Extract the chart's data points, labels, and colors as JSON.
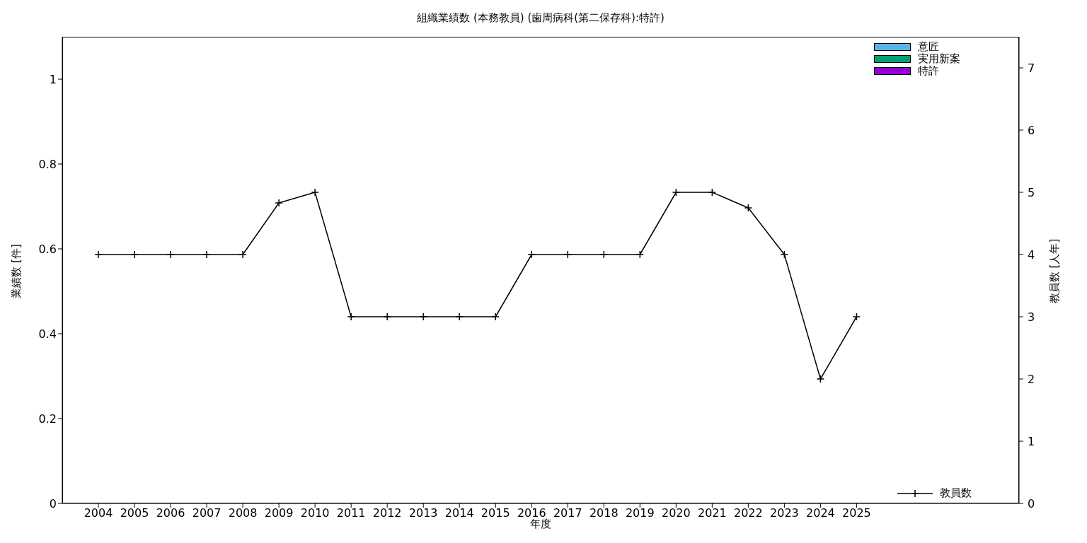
{
  "chart_data": {
    "type": "bar",
    "title": "組織業績数 (本務教員) (歯周病科(第二保存科):特許)",
    "xlabel": "年度",
    "ylabel": "業績数 [件]",
    "y2label": "教員数 [人年]",
    "x": [
      2004,
      2005,
      2006,
      2007,
      2008,
      2009,
      2010,
      2011,
      2012,
      2013,
      2014,
      2015,
      2016,
      2017,
      2018,
      2019,
      2020,
      2021,
      2022,
      2023,
      2024,
      2025
    ],
    "xlim": [
      2003,
      2029.5
    ],
    "xticks": [
      2004,
      2005,
      2006,
      2007,
      2008,
      2009,
      2010,
      2011,
      2012,
      2013,
      2014,
      2015,
      2016,
      2017,
      2018,
      2019,
      2020,
      2021,
      2022,
      2023,
      2024,
      2025
    ],
    "ylim": [
      0,
      1.1
    ],
    "yticks": [
      0,
      0.2,
      0.4,
      0.6,
      0.8,
      1
    ],
    "y2lim": [
      0,
      7.5
    ],
    "y2ticks": [
      0,
      1,
      2,
      3,
      4,
      5,
      6,
      7
    ],
    "legend": "right",
    "series": [
      {
        "name": "特許",
        "color": "#9400d3",
        "values": [
          0,
          0,
          0,
          0,
          0,
          0,
          0,
          0,
          0,
          0,
          0,
          0,
          0,
          0,
          0,
          0,
          0,
          0,
          0,
          0,
          0,
          0
        ]
      },
      {
        "name": "実用新案",
        "color": "#009e73",
        "values": [
          0,
          0,
          0,
          0,
          0,
          0,
          0,
          0,
          0,
          0,
          0,
          0,
          0,
          0,
          0,
          0,
          0,
          0,
          0,
          0,
          0,
          0
        ]
      },
      {
        "name": "意匠",
        "color": "#56b4e9",
        "values": [
          0,
          0,
          0,
          0,
          0,
          0,
          0,
          0,
          0,
          0,
          0,
          0,
          0,
          0,
          0,
          0,
          0,
          0,
          0,
          0,
          0,
          0
        ]
      },
      {
        "name": "教員数",
        "type": "line",
        "axis": "y2",
        "color": "#000000",
        "marker": "cross",
        "line_style": "solid",
        "values": [
          4,
          4,
          4,
          4,
          4,
          4.83,
          5,
          3,
          3,
          3,
          3,
          3,
          4,
          4,
          4,
          4,
          5,
          5,
          4.75,
          4,
          2,
          3
        ]
      }
    ]
  }
}
